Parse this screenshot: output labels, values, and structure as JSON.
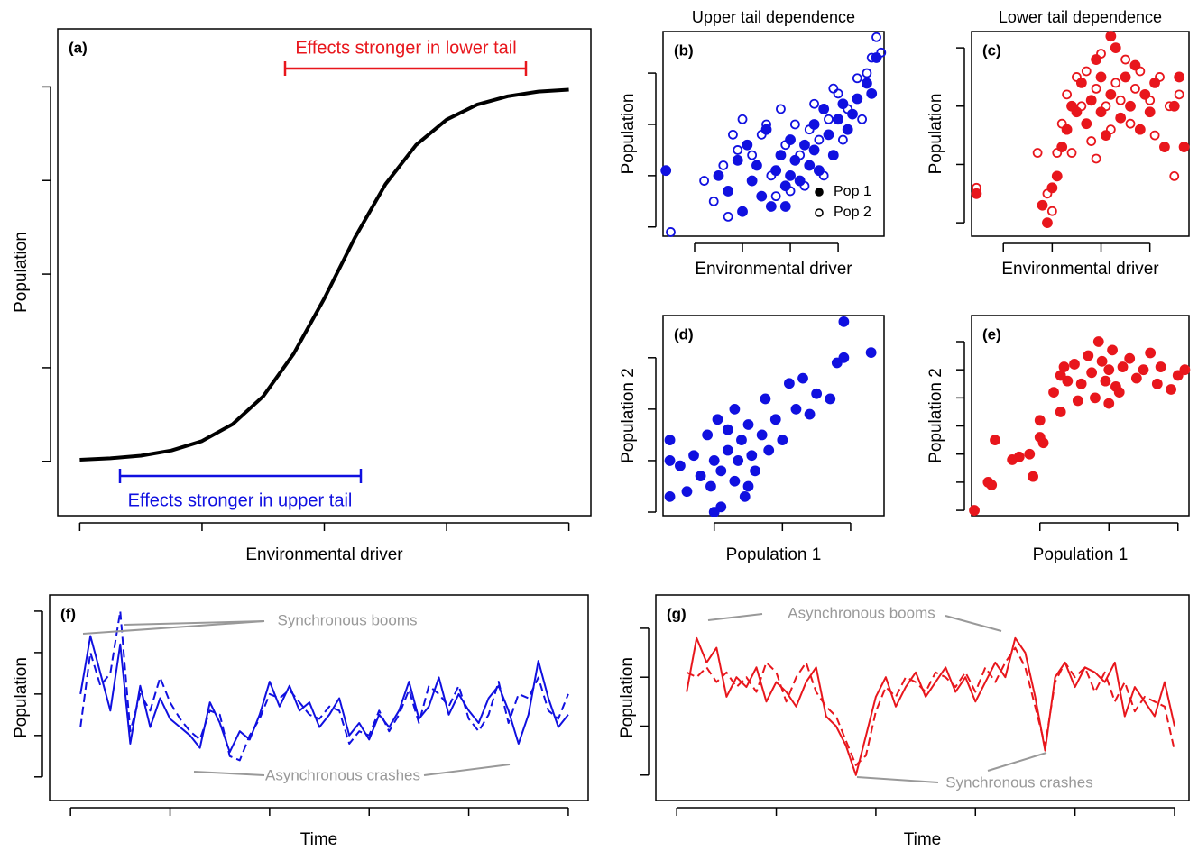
{
  "chart_data": [
    {
      "type": "line",
      "label": "(a)",
      "xlabel": "Environmental driver",
      "ylabel": "Population",
      "xlim": [
        -0.18,
        4.18
      ],
      "ylim": [
        -0.58,
        4.62
      ],
      "xticks": [
        0,
        1,
        2,
        3,
        4
      ],
      "yticks": [
        0,
        1,
        2,
        3,
        4
      ],
      "annotations": [
        {
          "text": "Effects stronger in lower tail",
          "color": "#e8161c"
        },
        {
          "text": "Effects stronger in upper tail",
          "color": "#1010e0"
        }
      ],
      "series": [
        {
          "color": "#000000",
          "style": "solid",
          "x": [
            0,
            0.25,
            0.5,
            0.75,
            1,
            1.25,
            1.5,
            1.75,
            2,
            2.25,
            2.5,
            2.75,
            3,
            3.25,
            3.5,
            3.75,
            4
          ],
          "values": [
            0.017,
            0.032,
            0.06,
            0.116,
            0.216,
            0.396,
            0.694,
            1.15,
            1.74,
            2.39,
            2.96,
            3.38,
            3.65,
            3.81,
            3.9,
            3.95,
            3.97
          ]
        }
      ]
    },
    {
      "type": "scatter",
      "title": "Upper tail dependence",
      "label": "(b)",
      "xlabel": "Environmental driver",
      "ylabel": "Population",
      "xlim": [
        0.34,
        4.96
      ],
      "ylim": [
        0.82,
        4.81
      ],
      "xticks": [
        1,
        2,
        3,
        4
      ],
      "yticks": [
        1,
        2,
        3,
        4
      ],
      "legend": "lower right",
      "series": [
        {
          "name": "Pop 1",
          "color": "#1010e0",
          "marker": "filled",
          "x": [
            0.4,
            1.5,
            1.7,
            1.9,
            2.1,
            2.2,
            2.3,
            2.4,
            2.5,
            2.6,
            2.7,
            2.8,
            2.9,
            3.0,
            3.0,
            3.1,
            3.2,
            3.3,
            3.4,
            3.5,
            3.5,
            3.6,
            3.7,
            3.8,
            3.9,
            4.0,
            4.1,
            4.2,
            4.3,
            4.4,
            4.6,
            4.7,
            4.8,
            2.0,
            2.9
          ],
          "values": [
            2.1,
            2.0,
            1.7,
            2.3,
            2.6,
            1.9,
            2.2,
            1.6,
            2.9,
            1.4,
            2.1,
            2.4,
            1.8,
            2.0,
            2.7,
            2.3,
            1.9,
            2.6,
            2.2,
            3.0,
            2.5,
            2.1,
            3.3,
            2.8,
            2.4,
            3.1,
            3.4,
            2.9,
            3.2,
            3.5,
            3.8,
            3.6,
            4.3,
            1.3,
            1.4
          ]
        },
        {
          "name": "Pop 2",
          "color": "#1010e0",
          "marker": "open",
          "x": [
            0.5,
            1.2,
            1.4,
            1.6,
            1.8,
            1.9,
            2.0,
            2.2,
            2.4,
            2.5,
            2.6,
            2.8,
            2.9,
            3.0,
            3.1,
            3.2,
            3.3,
            3.4,
            3.5,
            3.6,
            3.7,
            3.8,
            4.0,
            4.1,
            4.2,
            4.4,
            4.5,
            4.6,
            4.7,
            4.8,
            4.9,
            2.7,
            3.9,
            1.7
          ],
          "values": [
            0.9,
            1.9,
            1.5,
            2.2,
            2.8,
            2.5,
            3.1,
            2.4,
            2.8,
            3.0,
            2.0,
            3.3,
            2.6,
            1.7,
            3.0,
            2.4,
            1.8,
            2.9,
            3.4,
            2.7,
            2.0,
            3.1,
            3.6,
            2.7,
            3.3,
            3.9,
            3.1,
            4.0,
            4.3,
            4.7,
            4.4,
            1.6,
            3.7,
            1.2
          ]
        }
      ]
    },
    {
      "type": "scatter",
      "title": "Lower tail dependence",
      "label": "(c)",
      "xlabel": "Environmental driver",
      "ylabel": "Population",
      "xlim": [
        0.35,
        4.8
      ],
      "ylim": [
        0.77,
        4.28
      ],
      "xticks": [
        1,
        2,
        3,
        4
      ],
      "yticks": [
        1,
        2,
        3,
        4
      ],
      "series": [
        {
          "color": "#e8161c",
          "marker": "filled",
          "x": [
            0.45,
            1.8,
            1.9,
            2.0,
            2.1,
            2.2,
            2.3,
            2.5,
            2.6,
            2.7,
            2.8,
            2.9,
            3.0,
            3.0,
            3.1,
            3.2,
            3.3,
            3.4,
            3.5,
            3.6,
            3.7,
            3.8,
            3.9,
            4.0,
            4.1,
            4.3,
            4.5,
            4.7,
            4.6,
            3.2,
            2.4
          ],
          "values": [
            1.5,
            1.3,
            1.0,
            1.6,
            1.8,
            2.3,
            2.6,
            2.9,
            3.4,
            2.7,
            3.1,
            3.8,
            2.9,
            3.5,
            2.5,
            3.2,
            4.0,
            2.8,
            3.5,
            3.0,
            3.7,
            2.6,
            3.2,
            2.9,
            3.4,
            2.3,
            3.0,
            2.3,
            3.5,
            4.2,
            3.0
          ]
        },
        {
          "color": "#e8161c",
          "marker": "open",
          "x": [
            0.45,
            1.7,
            1.9,
            2.0,
            2.1,
            2.2,
            2.3,
            2.4,
            2.5,
            2.6,
            2.7,
            2.8,
            2.9,
            3.0,
            3.1,
            3.2,
            3.3,
            3.4,
            3.5,
            3.6,
            3.7,
            3.8,
            4.0,
            4.1,
            4.2,
            4.4,
            4.5,
            4.6,
            2.9
          ],
          "values": [
            1.6,
            2.2,
            1.5,
            1.2,
            2.2,
            2.7,
            3.2,
            2.2,
            3.5,
            3.0,
            3.6,
            2.4,
            3.3,
            3.9,
            3.0,
            2.6,
            3.4,
            3.1,
            3.8,
            2.7,
            3.3,
            3.6,
            3.1,
            2.5,
            3.5,
            3.0,
            1.8,
            3.2,
            2.1
          ]
        }
      ]
    },
    {
      "type": "scatter",
      "label": "(d)",
      "xlabel": "Population 1",
      "ylabel": "Population 2",
      "xlim": [
        0.25,
        3.49
      ],
      "ylim": [
        0.93,
        4.82
      ],
      "xticks": [
        1,
        2,
        3
      ],
      "yticks": [
        1,
        2,
        3,
        4
      ],
      "series": [
        {
          "color": "#1010e0",
          "marker": "filled",
          "x": [
            0.35,
            0.35,
            0.35,
            0.5,
            0.6,
            0.7,
            0.8,
            0.9,
            0.95,
            1.0,
            1.05,
            1.1,
            1.1,
            1.2,
            1.2,
            1.3,
            1.3,
            1.35,
            1.4,
            1.45,
            1.5,
            1.55,
            1.6,
            1.7,
            1.75,
            1.8,
            1.9,
            2.0,
            2.1,
            2.2,
            2.3,
            2.4,
            2.5,
            2.7,
            2.8,
            2.9,
            2.9,
            3.3,
            1.0,
            1.5
          ],
          "values": [
            1.3,
            2.0,
            2.4,
            1.9,
            1.4,
            2.1,
            1.7,
            2.5,
            1.5,
            2.0,
            2.8,
            1.1,
            1.8,
            2.2,
            2.6,
            1.6,
            3.0,
            2.0,
            2.4,
            1.3,
            2.7,
            2.1,
            1.8,
            2.5,
            3.2,
            2.2,
            2.8,
            2.4,
            3.5,
            3.0,
            3.6,
            2.9,
            3.3,
            3.2,
            3.9,
            4.0,
            4.7,
            4.1,
            1.0,
            1.5
          ]
        }
      ]
    },
    {
      "type": "scatter",
      "label": "(e)",
      "xlabel": "Population 1",
      "ylabel": "Population 2",
      "xlim": [
        0.01,
        3.16
      ],
      "ylim": [
        0.81,
        7.93
      ],
      "xticks": [
        1,
        2,
        3
      ],
      "yticks": [
        1,
        2,
        3,
        4,
        5,
        6,
        7
      ],
      "series": [
        {
          "color": "#e8161c",
          "marker": "filled",
          "x": [
            0.05,
            0.25,
            0.3,
            0.35,
            0.6,
            0.7,
            0.85,
            0.9,
            1.0,
            1.0,
            1.05,
            1.2,
            1.3,
            1.35,
            1.4,
            1.5,
            1.55,
            1.6,
            1.7,
            1.75,
            1.8,
            1.85,
            1.9,
            1.95,
            2.0,
            2.0,
            2.05,
            2.1,
            2.15,
            2.2,
            2.3,
            2.4,
            2.5,
            2.6,
            2.7,
            2.75,
            2.9,
            3.0,
            3.1,
            1.3
          ],
          "values": [
            1.0,
            2.0,
            1.9,
            3.5,
            2.8,
            2.9,
            3.0,
            2.2,
            4.2,
            3.6,
            3.4,
            5.2,
            4.5,
            6.1,
            5.6,
            6.2,
            4.9,
            5.5,
            6.5,
            5.9,
            5.0,
            7.0,
            6.3,
            5.6,
            6.0,
            4.8,
            6.7,
            5.4,
            5.2,
            6.1,
            6.4,
            5.7,
            6.0,
            6.6,
            5.5,
            6.1,
            5.3,
            5.8,
            6.0,
            5.8
          ]
        }
      ]
    },
    {
      "type": "line",
      "label": "(f)",
      "xlabel": "Time",
      "ylabel": "Population",
      "xlim": [
        -4.2,
        104
      ],
      "ylim": [
        0.43,
        5.39
      ],
      "xticks": [
        0,
        20,
        40,
        60,
        80,
        100
      ],
      "yticks": [
        1,
        2,
        3,
        4,
        5
      ],
      "annotations": [
        {
          "text": "Synchronous booms",
          "color": "#999999"
        },
        {
          "text": "Asynchronous crashes",
          "color": "#999999"
        }
      ],
      "series": [
        {
          "color": "#1010e0",
          "style": "solid",
          "x": [
            2,
            4,
            6,
            8,
            10,
            12,
            14,
            16,
            18,
            20,
            22,
            24,
            26,
            28,
            30,
            32,
            34,
            36,
            38,
            40,
            42,
            44,
            46,
            48,
            50,
            52,
            54,
            56,
            58,
            60,
            62,
            64,
            66,
            68,
            70,
            72,
            74,
            76,
            78,
            80,
            82,
            84,
            86,
            88,
            90,
            92,
            94,
            96,
            98,
            100
          ],
          "values": [
            3.0,
            4.4,
            3.5,
            2.6,
            4.2,
            1.8,
            3.2,
            2.2,
            2.9,
            2.4,
            2.2,
            2.0,
            1.7,
            2.8,
            2.3,
            1.6,
            2.1,
            1.9,
            2.5,
            3.3,
            2.7,
            3.2,
            2.6,
            2.8,
            2.2,
            2.5,
            2.9,
            2.0,
            2.3,
            1.9,
            2.5,
            2.2,
            2.6,
            3.3,
            2.4,
            2.7,
            3.4,
            2.5,
            3.0,
            2.6,
            2.3,
            2.9,
            3.2,
            2.6,
            1.8,
            2.5,
            3.8,
            2.9,
            2.2,
            2.5
          ]
        },
        {
          "color": "#1010e0",
          "style": "dashed",
          "x": [
            2,
            4,
            6,
            8,
            10,
            12,
            14,
            16,
            18,
            20,
            22,
            24,
            26,
            28,
            30,
            32,
            34,
            36,
            38,
            40,
            42,
            44,
            46,
            48,
            50,
            52,
            54,
            56,
            58,
            60,
            62,
            64,
            66,
            68,
            70,
            72,
            74,
            76,
            78,
            80,
            82,
            84,
            86,
            88,
            90,
            92,
            94,
            96,
            98,
            100
          ],
          "values": [
            2.2,
            4.0,
            3.2,
            3.5,
            5.0,
            2.1,
            3.0,
            2.6,
            3.4,
            2.8,
            2.4,
            2.1,
            1.9,
            2.6,
            2.5,
            1.5,
            1.4,
            2.0,
            2.4,
            3.0,
            2.9,
            3.1,
            2.8,
            2.5,
            2.4,
            2.7,
            2.6,
            1.8,
            2.1,
            2.0,
            2.6,
            2.1,
            2.5,
            3.1,
            2.3,
            3.2,
            3.0,
            2.7,
            3.2,
            2.4,
            2.1,
            2.5,
            3.3,
            2.3,
            3.0,
            2.9,
            3.4,
            2.6,
            2.4,
            3.0
          ]
        }
      ]
    },
    {
      "type": "line",
      "label": "(g)",
      "xlabel": "Time",
      "ylabel": "Population",
      "xlim": [
        -4.2,
        102.9
      ],
      "ylim": [
        0.48,
        4.68
      ],
      "xticks": [
        0,
        20,
        40,
        60,
        80,
        100
      ],
      "yticks": [
        1,
        2,
        3,
        4
      ],
      "annotations": [
        {
          "text": "Asynchronous booms",
          "color": "#999999"
        },
        {
          "text": "Synchronous crashes",
          "color": "#999999"
        }
      ],
      "series": [
        {
          "color": "#e8161c",
          "style": "solid",
          "x": [
            2,
            4,
            6,
            8,
            10,
            12,
            14,
            16,
            18,
            20,
            22,
            24,
            26,
            28,
            30,
            32,
            34,
            36,
            38,
            40,
            42,
            44,
            46,
            48,
            50,
            52,
            54,
            56,
            58,
            60,
            62,
            64,
            66,
            68,
            70,
            72,
            74,
            76,
            78,
            80,
            82,
            84,
            86,
            88,
            90,
            92,
            94,
            96,
            98,
            100
          ],
          "values": [
            2.7,
            3.8,
            3.3,
            3.6,
            2.6,
            3.0,
            2.8,
            3.2,
            2.5,
            2.9,
            2.7,
            2.4,
            2.9,
            3.2,
            2.2,
            2.0,
            1.6,
            1.0,
            1.8,
            2.6,
            3.0,
            2.4,
            2.8,
            3.1,
            2.6,
            2.9,
            3.2,
            2.7,
            3.0,
            2.5,
            2.9,
            3.3,
            3.0,
            3.8,
            3.5,
            2.6,
            1.5,
            3.0,
            3.3,
            2.8,
            3.2,
            3.1,
            2.9,
            3.3,
            2.2,
            2.8,
            2.5,
            2.2,
            2.9,
            2.0
          ]
        },
        {
          "color": "#e8161c",
          "style": "dashed",
          "x": [
            2,
            4,
            6,
            8,
            10,
            12,
            14,
            16,
            18,
            20,
            22,
            24,
            26,
            28,
            30,
            32,
            34,
            36,
            38,
            40,
            42,
            44,
            46,
            48,
            50,
            52,
            54,
            56,
            58,
            60,
            62,
            64,
            66,
            68,
            70,
            72,
            74,
            76,
            78,
            80,
            82,
            84,
            86,
            88,
            90,
            92,
            94,
            96,
            98,
            100
          ],
          "values": [
            3.1,
            3.0,
            3.2,
            2.9,
            3.1,
            2.8,
            3.0,
            2.7,
            3.3,
            3.1,
            2.5,
            3.0,
            3.3,
            2.7,
            2.4,
            2.2,
            1.7,
            1.2,
            1.4,
            2.3,
            2.8,
            2.6,
            3.0,
            2.9,
            2.7,
            3.1,
            3.0,
            2.8,
            3.1,
            2.7,
            3.2,
            2.9,
            3.3,
            3.6,
            3.2,
            2.4,
            1.6,
            2.9,
            3.3,
            3.0,
            3.2,
            2.7,
            3.1,
            2.5,
            2.9,
            2.3,
            2.6,
            2.5,
            2.4,
            1.5
          ]
        }
      ]
    }
  ]
}
